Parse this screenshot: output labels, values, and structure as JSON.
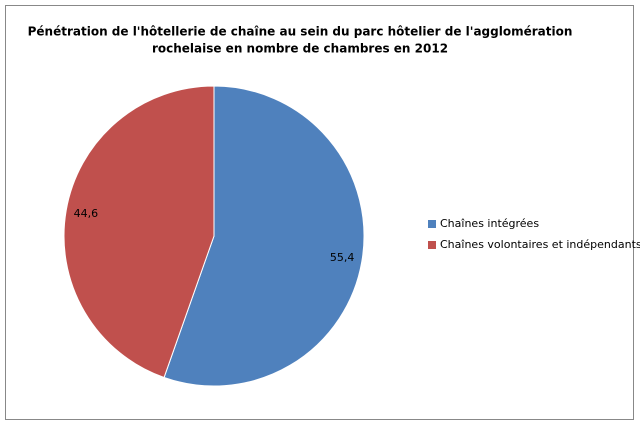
{
  "chart_data": {
    "type": "pie",
    "title": [
      "Pénétration de l'hôtellerie de chaîne au sein du parc hôtelier de l'agglomération",
      "rochelaise en nombre de chambres en 2012"
    ],
    "categories": [
      "Chaînes intégrées",
      "Chaînes volontaires et indépendants"
    ],
    "values": [
      55.4,
      44.6
    ],
    "value_labels": [
      "55,4",
      "44,6"
    ],
    "colors": [
      "#4f81bd",
      "#c0504d"
    ],
    "legend": "right"
  }
}
